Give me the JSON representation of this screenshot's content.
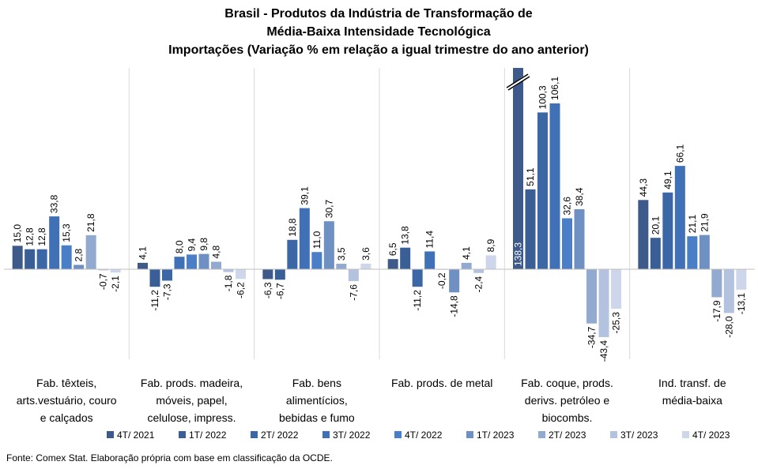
{
  "chart_data": {
    "type": "bar",
    "title": [
      "Brasil - Produtos da Indústria de Transformação de",
      "Média-Baixa Intensidade Tecnológica",
      "Importações (Variação % em relação a igual trimestre do ano anterior)"
    ],
    "categories": [
      [
        "Fab. têxteis,",
        "arts.vestuário, couro",
        "e calçados"
      ],
      [
        "Fab. prods. madeira,",
        "móveis, papel,",
        "celulose, impress."
      ],
      [
        "Fab. bens",
        "alimentícios,",
        "bebidas e fumo"
      ],
      [
        "Fab. prods. de metal"
      ],
      [
        "Fab. coque, prods.",
        "derivs. petróleo e",
        "biocombs."
      ],
      [
        "Ind. transf. de",
        "média-baixa"
      ]
    ],
    "series": [
      {
        "name": "4T/ 2021",
        "color": "#3d5a8a",
        "values": [
          15.0,
          4.1,
          -6.3,
          6.5,
          138.3,
          44.3
        ]
      },
      {
        "name": "1T/ 2022",
        "color": "#3a5f96",
        "values": [
          12.8,
          -11.2,
          -6.7,
          13.8,
          51.1,
          20.1
        ]
      },
      {
        "name": "2T/ 2022",
        "color": "#3c67a6",
        "values": [
          12.8,
          -7.3,
          18.8,
          -11.2,
          100.3,
          49.1
        ]
      },
      {
        "name": "3T/ 2022",
        "color": "#4070b6",
        "values": [
          33.8,
          8.0,
          39.1,
          11.4,
          106.1,
          66.1
        ]
      },
      {
        "name": "4T/ 2022",
        "color": "#4a7ec6",
        "values": [
          15.3,
          9.4,
          11.0,
          -0.2,
          32.6,
          21.1
        ]
      },
      {
        "name": "1T/ 2023",
        "color": "#6f90c2",
        "values": [
          2.8,
          9.8,
          30.7,
          -14.8,
          38.4,
          21.9
        ]
      },
      {
        "name": "2T/ 2023",
        "color": "#92a9d0",
        "values": [
          21.8,
          4.8,
          3.5,
          4.1,
          -34.7,
          -17.9
        ]
      },
      {
        "name": "3T/ 2023",
        "color": "#b3c2df",
        "values": [
          -0.7,
          -1.8,
          -7.6,
          -2.4,
          -43.4,
          -28.0
        ]
      },
      {
        "name": "4T/ 2023",
        "color": "#cdd6ea",
        "values": [
          -2.1,
          -6.2,
          3.6,
          8.9,
          -25.3,
          -13.1
        ]
      }
    ],
    "value_labels": [
      [
        "15,0",
        "12,8",
        "12,8",
        "33,8",
        "15,3",
        "2,8",
        "21,8",
        "-0,7",
        "-2,1"
      ],
      [
        "4,1",
        "-11,2",
        "-7,3",
        "8,0",
        "9,4",
        "9,8",
        "4,8",
        "-1,8",
        "-6,2"
      ],
      [
        "-6,3",
        "-6,7",
        "18,8",
        "39,1",
        "11,0",
        "30,7",
        "3,5",
        "-7,6",
        "3,6"
      ],
      [
        "6,5",
        "13,8",
        "-11,2",
        "11,4",
        "-0,2",
        "-14,8",
        "4,1",
        "-2,4",
        "8,9"
      ],
      [
        "138,3",
        "51,1",
        "100,3",
        "106,1",
        "32,6",
        "38,4",
        "-34,7",
        "-43,4",
        "-25,3"
      ],
      [
        "44,3",
        "20,1",
        "49,1",
        "66,1",
        "21,1",
        "21,9",
        "-17,9",
        "-28,0",
        "-13,1"
      ]
    ],
    "axis_break": {
      "category_index": 4,
      "series_index": 0
    },
    "grid": false,
    "legend": "bottom"
  },
  "source": "Fonte: Comex Stat. Elaboração própria com base em classificação da OCDE."
}
